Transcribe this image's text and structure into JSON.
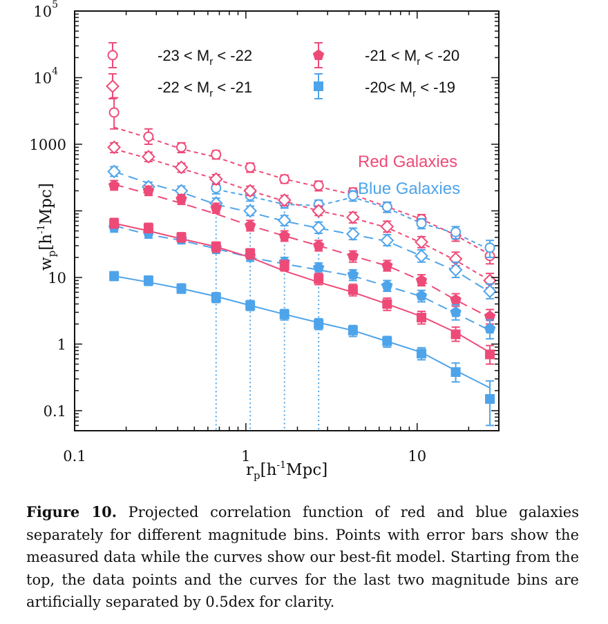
{
  "chart_data": {
    "type": "scatter",
    "xscale": "log",
    "yscale": "log",
    "xlim": [
      0.1,
      30
    ],
    "ylim": [
      0.05,
      100000
    ],
    "xticks": [
      {
        "v": 0.1,
        "label": "0.1"
      },
      {
        "v": 1,
        "label": "1"
      },
      {
        "v": 10,
        "label": "10"
      }
    ],
    "yticks": [
      {
        "v": 0.1,
        "label": "0.1"
      },
      {
        "v": 1,
        "label": "1"
      },
      {
        "v": 10,
        "label": "10"
      },
      {
        "v": 1000,
        "label": "1000"
      },
      {
        "v": 10000,
        "label": "10",
        "sup": "4"
      },
      {
        "v": 100000,
        "label": "10",
        "sup": "5"
      }
    ],
    "xlabel": {
      "main": "r",
      "sub": "p",
      "rest1": "[h",
      "sup": "-1",
      "rest2": "Mpc]"
    },
    "ylabel": {
      "main": "w",
      "sub": "p",
      "rest1": "[h",
      "sup": "-1",
      "rest2": "Mpc]"
    },
    "group_labels": [
      {
        "text": "Red Galaxies",
        "color": "#ee4a78"
      },
      {
        "text": "Blue Galaxies",
        "color": "#4ea4ea"
      }
    ],
    "colors": {
      "red": "#ee4a78",
      "blue": "#4ea4ea"
    },
    "legend": [
      {
        "marker": "circle-open",
        "text": "-23 < M",
        "sub": "r",
        "text2": " < -22"
      },
      {
        "marker": "diamond-open",
        "text": "-22 < M",
        "sub": "r",
        "text2": " < -21"
      },
      {
        "marker": "pentagon",
        "text": "-21 < M",
        "sub": "r",
        "text2": " < -20"
      },
      {
        "marker": "square",
        "text": "-20< M",
        "sub": "r",
        "text2": " < -19"
      }
    ],
    "x": [
      0.17,
      0.27,
      0.42,
      0.67,
      1.06,
      1.68,
      2.66,
      4.22,
      6.68,
      10.6,
      16.8,
      26.6
    ],
    "vlines": [
      0.67,
      1.06,
      1.68,
      2.66
    ],
    "series": [
      {
        "group": "red",
        "marker": "circle-open",
        "model_style": "dash-short",
        "y": [
          3000,
          1300,
          900,
          700,
          450,
          300,
          240,
          190,
          115,
          75,
          43,
          21
        ],
        "yerr": [
          [
            1700,
            5000
          ],
          [
            1000,
            1700
          ],
          [
            750,
            1050
          ],
          [
            600,
            800
          ],
          [
            380,
            520
          ],
          [
            260,
            345
          ],
          [
            200,
            280
          ],
          [
            160,
            220
          ],
          [
            95,
            135
          ],
          [
            62,
            88
          ],
          [
            35,
            52
          ],
          [
            16,
            26
          ]
        ],
        "model": [
          1800,
          1250,
          850,
          640,
          430,
          300,
          230,
          175,
          115,
          75,
          43,
          22
        ]
      },
      {
        "group": "blue",
        "marker": "circle-open",
        "model_style": "dash-short",
        "y": [
          null,
          null,
          null,
          220,
          170,
          130,
          125,
          170,
          115,
          65,
          48,
          28
        ],
        "yerr": [
          null,
          null,
          null,
          [
            180,
            260
          ],
          [
            140,
            200
          ],
          [
            110,
            150
          ],
          [
            105,
            145
          ],
          [
            140,
            200
          ],
          [
            95,
            135
          ],
          [
            54,
            76
          ],
          [
            38,
            58
          ],
          [
            20,
            36
          ]
        ],
        "model": [
          null,
          null,
          null,
          210,
          165,
          125,
          120,
          160,
          110,
          65,
          46,
          26
        ]
      },
      {
        "group": "red",
        "marker": "diamond-open",
        "model_style": "dash-short",
        "y": [
          900,
          650,
          450,
          300,
          200,
          145,
          100,
          80,
          58,
          34,
          19,
          9
        ],
        "yerr": [
          [
            750,
            1050
          ],
          [
            550,
            760
          ],
          [
            380,
            520
          ],
          [
            250,
            350
          ],
          [
            170,
            235
          ],
          [
            120,
            170
          ],
          [
            85,
            118
          ],
          [
            66,
            95
          ],
          [
            48,
            70
          ],
          [
            28,
            41
          ],
          [
            15,
            24
          ],
          [
            7,
            11.5
          ]
        ],
        "model": [
          850,
          610,
          430,
          300,
          200,
          140,
          100,
          78,
          56,
          33,
          18,
          9
        ]
      },
      {
        "group": "blue",
        "marker": "diamond-open",
        "model_style": "dash-long",
        "y": [
          390,
          230,
          200,
          130,
          100,
          72,
          56,
          45,
          36,
          21,
          13,
          6.2
        ],
        "yerr": [
          [
            330,
            460
          ],
          [
            195,
            270
          ],
          [
            170,
            235
          ],
          [
            110,
            155
          ],
          [
            85,
            118
          ],
          [
            60,
            85
          ],
          [
            46,
            68
          ],
          [
            37,
            55
          ],
          [
            30,
            44
          ],
          [
            17,
            26
          ],
          [
            10,
            17
          ],
          [
            4.8,
            8
          ]
        ],
        "model": [
          390,
          260,
          190,
          125,
          95,
          70,
          55,
          44,
          35,
          21,
          12.5,
          6
        ]
      },
      {
        "group": "red",
        "marker": "pentagon",
        "model_style": "dash-long",
        "y": [
          240,
          200,
          150,
          110,
          60,
          42,
          30,
          21,
          15,
          9,
          4.6,
          2.6
        ],
        "yerr": [
          [
            205,
            285
          ],
          [
            170,
            235
          ],
          [
            125,
            175
          ],
          [
            92,
            130
          ],
          [
            50,
            72
          ],
          [
            35,
            50
          ],
          [
            25,
            36
          ],
          [
            17,
            25
          ],
          [
            12.5,
            18
          ],
          [
            7.5,
            11
          ],
          [
            3.7,
            5.7
          ],
          [
            2.0,
            3.3
          ]
        ],
        "model": [
          250,
          180,
          130,
          90,
          60,
          42,
          30,
          21,
          15,
          9,
          4.6,
          2.5
        ]
      },
      {
        "group": "blue",
        "marker": "pentagon",
        "model_style": "dash-long",
        "y": [
          56,
          46,
          38,
          28,
          21,
          17,
          14,
          11,
          7.5,
          5.3,
          3.0,
          1.7
        ],
        "yerr": [
          [
            48,
            65
          ],
          [
            39,
            54
          ],
          [
            32,
            45
          ],
          [
            23,
            33
          ],
          [
            17.5,
            25
          ],
          [
            14,
            20
          ],
          [
            11.5,
            16.5
          ],
          [
            9,
            13
          ],
          [
            6.2,
            9
          ],
          [
            4.3,
            6.4
          ],
          [
            2.3,
            3.9
          ],
          [
            1.2,
            2.3
          ]
        ],
        "model": [
          60,
          44,
          36,
          27,
          20,
          16,
          13,
          10.5,
          7.4,
          5.2,
          2.9,
          1.6
        ]
      },
      {
        "group": "red",
        "marker": "square",
        "model_style": "solid",
        "y": [
          65,
          55,
          40,
          29,
          23,
          15,
          9.5,
          6.5,
          4.0,
          2.5,
          1.4,
          0.7
        ],
        "yerr": [
          [
            55,
            77
          ],
          [
            47,
            65
          ],
          [
            34,
            47
          ],
          [
            24,
            34
          ],
          [
            19,
            27
          ],
          [
            12.5,
            18
          ],
          [
            7.8,
            11.5
          ],
          [
            5.3,
            7.9
          ],
          [
            3.2,
            4.9
          ],
          [
            2.0,
            3.1
          ],
          [
            1.1,
            1.8
          ],
          [
            0.5,
            0.95
          ]
        ],
        "model": [
          65,
          50,
          38,
          29,
          20,
          12.5,
          8.5,
          6.0,
          4.0,
          2.6,
          1.5,
          0.75
        ]
      },
      {
        "group": "blue",
        "marker": "square",
        "model_style": "solid",
        "y": [
          10.5,
          9,
          6.8,
          5.0,
          3.8,
          2.8,
          2.0,
          1.6,
          1.1,
          0.72,
          0.38,
          0.15
        ],
        "yerr": [
          [
            9,
            12.2
          ],
          [
            7.6,
            10.5
          ],
          [
            5.8,
            8
          ],
          [
            4.2,
            5.9
          ],
          [
            3.2,
            4.5
          ],
          [
            2.3,
            3.3
          ],
          [
            1.65,
            2.4
          ],
          [
            1.3,
            1.9
          ],
          [
            0.9,
            1.3
          ],
          [
            0.58,
            0.88
          ],
          [
            0.27,
            0.52
          ],
          [
            0.06,
            0.28
          ]
        ],
        "model": [
          10.5,
          8.5,
          6.8,
          5.2,
          3.8,
          2.8,
          2.1,
          1.6,
          1.1,
          0.75,
          0.4,
          0.22
        ]
      }
    ]
  },
  "caption": {
    "label": "Figure 10.",
    "text": " Projected correlation function of red and blue galaxies separately for different magnitude bins. Points with error bars show the measured data while the curves show our best-fit model. Starting from the top, the data points and the curves for the last two magnitude bins are artificially separated by 0.5dex for clarity."
  }
}
